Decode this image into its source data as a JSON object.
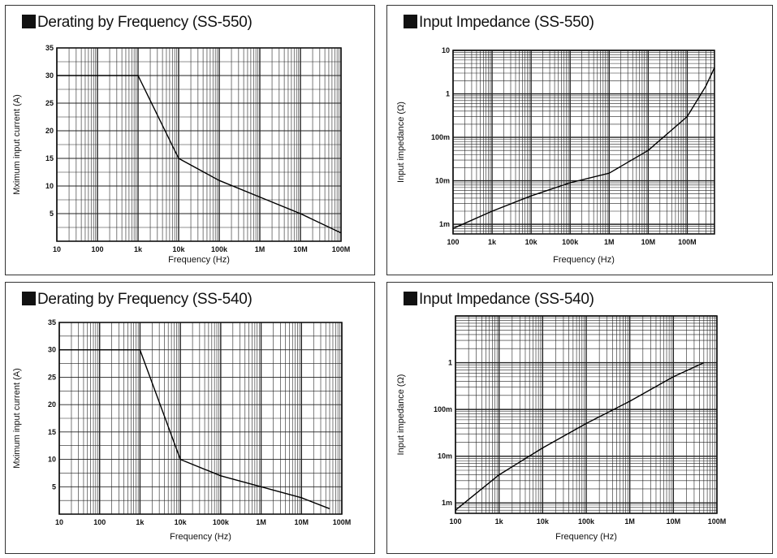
{
  "chart_data": [
    {
      "type": "line",
      "title": "Derating by Frequency (SS-550)",
      "xlabel": "Frequency (Hz)",
      "ylabel": "Mximum input current (A)",
      "x_scale": "log",
      "y_scale": "linear",
      "xlim": [
        10,
        100000000
      ],
      "ylim": [
        0,
        35
      ],
      "grid": true,
      "x_tick_labels": [
        "10",
        "100",
        "1k",
        "10k",
        "100k",
        "1M",
        "10M",
        "100M"
      ],
      "y_tick_labels": [
        "35",
        "30",
        "25",
        "20",
        "15",
        "10",
        "5"
      ],
      "y_tick_values": [
        35,
        30,
        25,
        20,
        15,
        10,
        5
      ],
      "series": [
        {
          "x": [
            10,
            1000,
            10000,
            100000,
            1000000,
            10000000,
            100000000
          ],
          "y": [
            30,
            30,
            15,
            11,
            8,
            5,
            1.5
          ]
        }
      ]
    },
    {
      "type": "line",
      "title": "Input Impedance (SS-550)",
      "xlabel": "Frequency (Hz)",
      "ylabel": "Input impedance (Ω)",
      "x_scale": "log",
      "y_scale": "log",
      "xlim": [
        100,
        500000000
      ],
      "ylim": [
        0.0006,
        10
      ],
      "grid": true,
      "x_tick_labels": [
        "100",
        "1k",
        "10k",
        "100k",
        "1M",
        "10M",
        "100M"
      ],
      "y_tick_labels": [
        "10",
        "1",
        "100m",
        "10m",
        "1m"
      ],
      "y_tick_values": [
        10,
        1,
        0.1,
        0.01,
        0.001
      ],
      "series": [
        {
          "x": [
            100,
            1000,
            10000,
            100000,
            1000000,
            10000000,
            100000000,
            300000000,
            500000000
          ],
          "y": [
            0.0008,
            0.002,
            0.0045,
            0.009,
            0.015,
            0.05,
            0.3,
            1.5,
            4
          ]
        }
      ]
    },
    {
      "type": "line",
      "title": "Derating by Frequency (SS-540)",
      "xlabel": "Frequency (Hz)",
      "ylabel": "Mximum input current (A)",
      "x_scale": "log",
      "y_scale": "linear",
      "xlim": [
        10,
        100000000
      ],
      "ylim": [
        0,
        35
      ],
      "grid": true,
      "x_tick_labels": [
        "10",
        "100",
        "1k",
        "10k",
        "100k",
        "1M",
        "10M",
        "100M"
      ],
      "y_tick_labels": [
        "35",
        "30",
        "25",
        "20",
        "15",
        "10",
        "5"
      ],
      "y_tick_values": [
        35,
        30,
        25,
        20,
        15,
        10,
        5
      ],
      "series": [
        {
          "x": [
            10,
            1000,
            10000,
            100000,
            1000000,
            10000000,
            50000000
          ],
          "y": [
            30,
            30,
            10,
            7,
            5,
            3,
            1
          ]
        }
      ]
    },
    {
      "type": "line",
      "title": "Input Impedance (SS-540)",
      "xlabel": "Frequency (Hz)",
      "ylabel": "Input impedance (Ω)",
      "x_scale": "log",
      "y_scale": "log",
      "xlim": [
        100,
        100000000
      ],
      "ylim": [
        0.0006,
        10
      ],
      "grid": true,
      "x_tick_labels": [
        "100",
        "1k",
        "10k",
        "100k",
        "1M",
        "10M",
        "100M"
      ],
      "y_tick_labels": [
        "1",
        "100m",
        "10m",
        "1m"
      ],
      "y_tick_values": [
        1,
        0.1,
        0.01,
        0.001
      ],
      "series": [
        {
          "x": [
            100,
            1000,
            10000,
            100000,
            1000000,
            10000000,
            50000000
          ],
          "y": [
            0.0007,
            0.004,
            0.015,
            0.05,
            0.15,
            0.5,
            1
          ]
        }
      ]
    }
  ]
}
